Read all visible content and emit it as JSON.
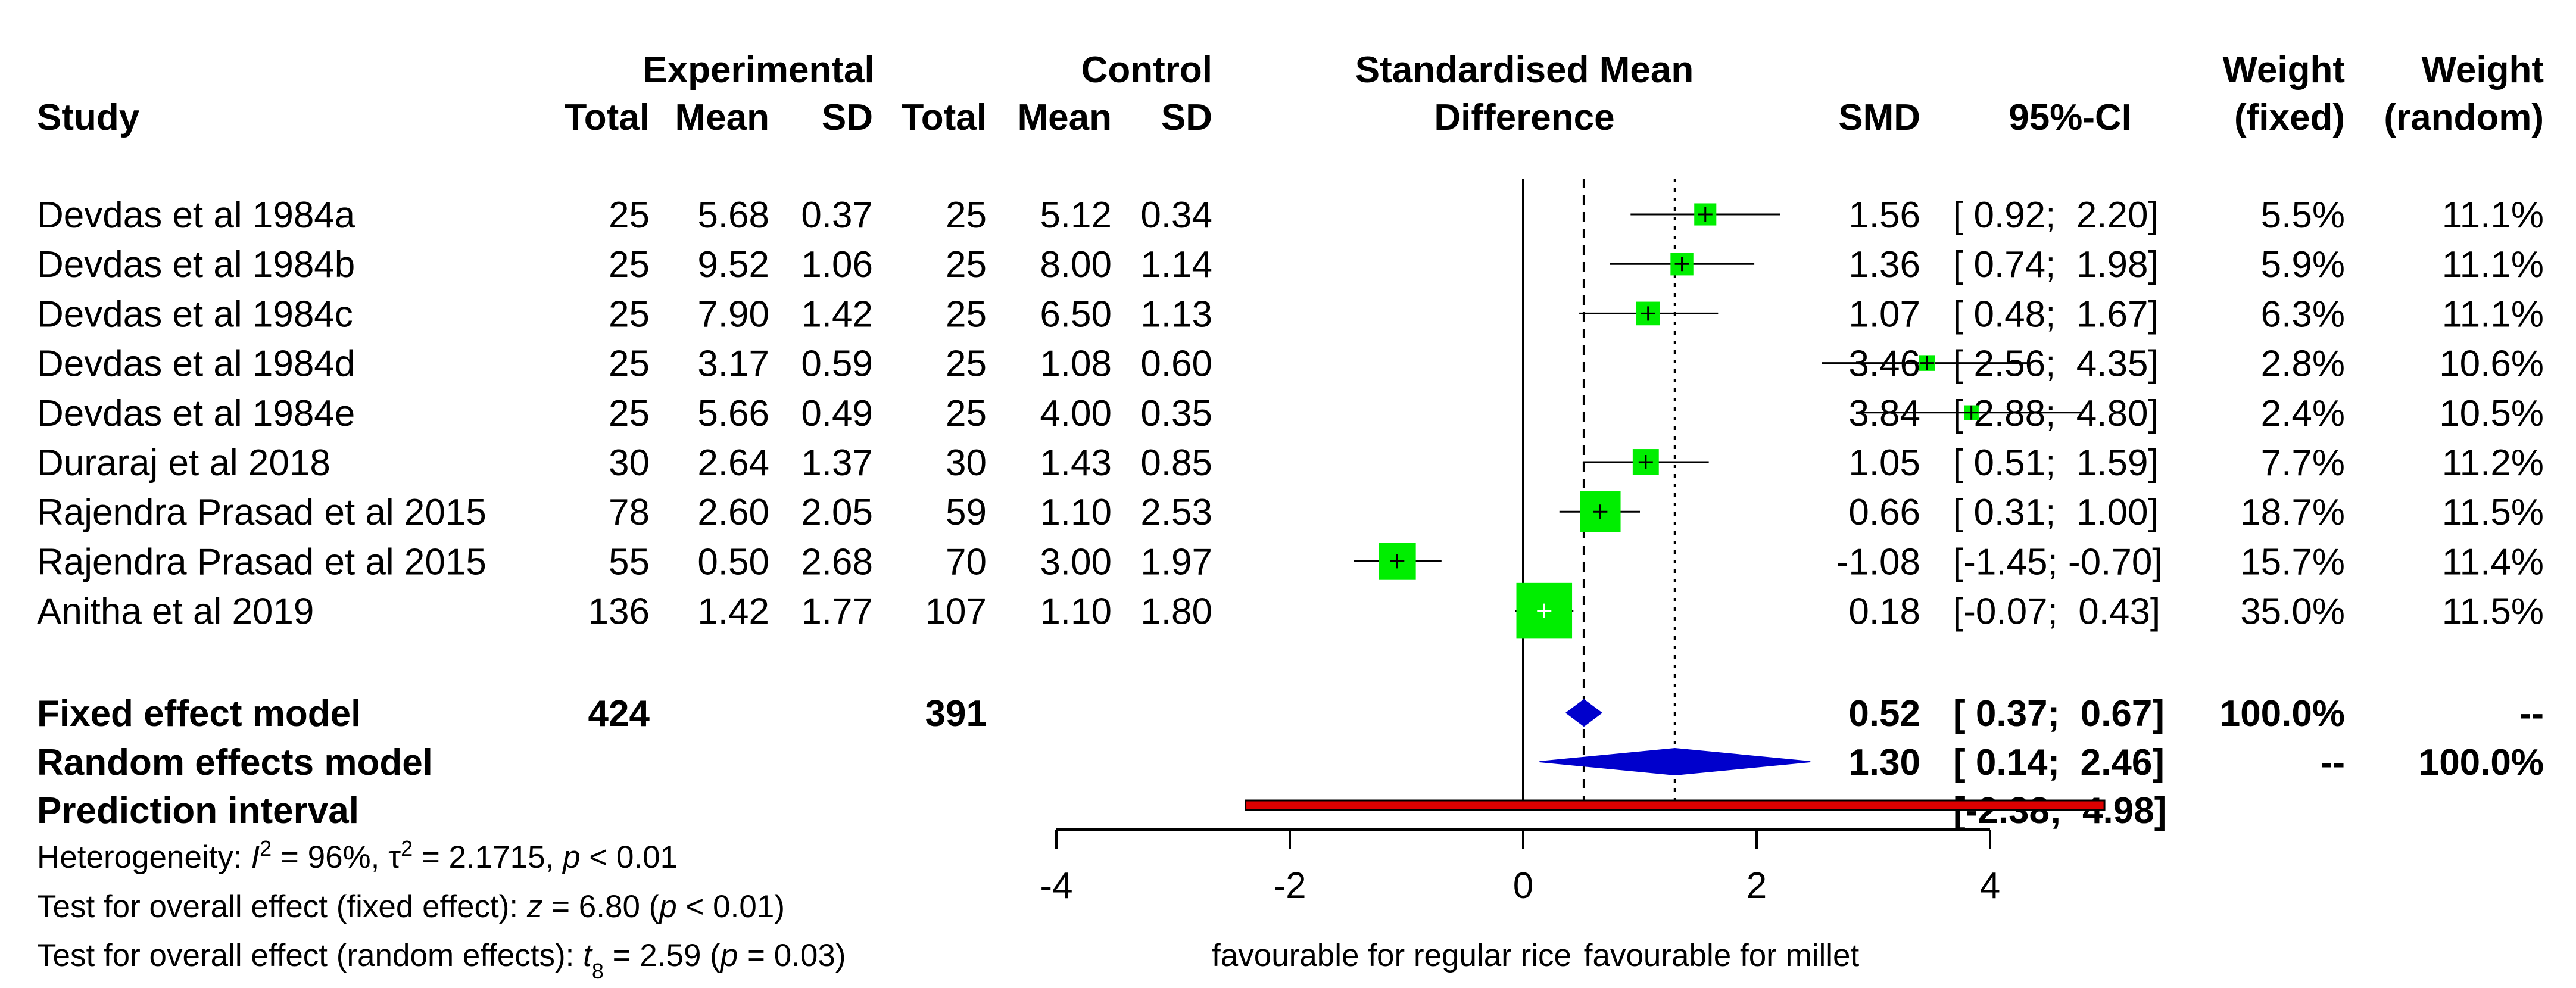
{
  "headers": {
    "study": "Study",
    "experimental": "Experimental",
    "control": "Control",
    "total": "Total",
    "mean": "Mean",
    "sd": "SD",
    "smd_line1": "Standardised Mean",
    "smd_line2": "Difference",
    "smd": "SMD",
    "ci": "95%-CI",
    "weight": "Weight",
    "fixed": "(fixed)",
    "random": "(random)"
  },
  "studies": [
    {
      "study": "Devdas et al 1984a",
      "exp_total": "25",
      "exp_mean": "5.68",
      "exp_sd": "0.37",
      "ctl_total": "25",
      "ctl_mean": "5.12",
      "ctl_sd": "0.34",
      "smd_text": "1.56",
      "ci_text": "[ 0.92;  2.20]",
      "w_fixed": "5.5%",
      "w_random": "11.1%"
    },
    {
      "study": "Devdas et al 1984b",
      "exp_total": "25",
      "exp_mean": "9.52",
      "exp_sd": "1.06",
      "ctl_total": "25",
      "ctl_mean": "8.00",
      "ctl_sd": "1.14",
      "smd_text": "1.36",
      "ci_text": "[ 0.74;  1.98]",
      "w_fixed": "5.9%",
      "w_random": "11.1%"
    },
    {
      "study": "Devdas et al 1984c",
      "exp_total": "25",
      "exp_mean": "7.90",
      "exp_sd": "1.42",
      "ctl_total": "25",
      "ctl_mean": "6.50",
      "ctl_sd": "1.13",
      "smd_text": "1.07",
      "ci_text": "[ 0.48;  1.67]",
      "w_fixed": "6.3%",
      "w_random": "11.1%"
    },
    {
      "study": "Devdas et al 1984d",
      "exp_total": "25",
      "exp_mean": "3.17",
      "exp_sd": "0.59",
      "ctl_total": "25",
      "ctl_mean": "1.08",
      "ctl_sd": "0.60",
      "smd_text": "3.46",
      "ci_text": "[ 2.56;  4.35]",
      "w_fixed": "2.8%",
      "w_random": "10.6%"
    },
    {
      "study": "Devdas et al 1984e",
      "exp_total": "25",
      "exp_mean": "5.66",
      "exp_sd": "0.49",
      "ctl_total": "25",
      "ctl_mean": "4.00",
      "ctl_sd": "0.35",
      "smd_text": "3.84",
      "ci_text": "[ 2.88;  4.80]",
      "w_fixed": "2.4%",
      "w_random": "10.5%"
    },
    {
      "study": "Duraraj et al 2018",
      "exp_total": "30",
      "exp_mean": "2.64",
      "exp_sd": "1.37",
      "ctl_total": "30",
      "ctl_mean": "1.43",
      "ctl_sd": "0.85",
      "smd_text": "1.05",
      "ci_text": "[ 0.51;  1.59]",
      "w_fixed": "7.7%",
      "w_random": "11.2%"
    },
    {
      "study": "Rajendra Prasad et al 2015",
      "exp_total": "78",
      "exp_mean": "2.60",
      "exp_sd": "2.05",
      "ctl_total": "59",
      "ctl_mean": "1.10",
      "ctl_sd": "2.53",
      "smd_text": "0.66",
      "ci_text": "[ 0.31;  1.00]",
      "w_fixed": "18.7%",
      "w_random": "11.5%"
    },
    {
      "study": "Rajendra Prasad et al 2015",
      "exp_total": "55",
      "exp_mean": "0.50",
      "exp_sd": "2.68",
      "ctl_total": "70",
      "ctl_mean": "3.00",
      "ctl_sd": "1.97",
      "smd_text": "-1.08",
      "ci_text": "[-1.45; -0.70]",
      "w_fixed": "15.7%",
      "w_random": "11.4%"
    },
    {
      "study": "Anitha et al 2019",
      "exp_total": "136",
      "exp_mean": "1.42",
      "exp_sd": "1.77",
      "ctl_total": "107",
      "ctl_mean": "1.10",
      "ctl_sd": "1.80",
      "smd_text": "0.18",
      "ci_text": "[-0.07;  0.43]",
      "w_fixed": "35.0%",
      "w_random": "11.5%"
    }
  ],
  "summary": {
    "fixed": {
      "label": "Fixed effect model",
      "exp_total": "424",
      "ctl_total": "391",
      "smd_text": "0.52",
      "ci_text": "[ 0.37;  0.67]",
      "w_fixed": "100.0%",
      "w_random": "--"
    },
    "random": {
      "label": "Random effects model",
      "smd_text": "1.30",
      "ci_text": "[ 0.14;  2.46]",
      "w_fixed": "--",
      "w_random": "100.0%"
    },
    "prediction": {
      "label": "Prediction interval",
      "ci_text": "[-2.38;  4.98]"
    }
  },
  "footnotes": {
    "heterogeneity": {
      "prefix": "Heterogeneity: ",
      "i2_symbol": "I",
      "i2_sup": "2",
      "i2_value": " = 96%, ",
      "tau_symbol": "τ",
      "tau_sup": "2",
      "tau_value": " = 2.1715, ",
      "p_symbol": "p",
      "p_value": " < 0.01"
    },
    "fixed_test": {
      "prefix": "Test for overall effect (fixed effect): ",
      "stat": "z",
      "stat_value": " = 6.80 (",
      "p_symbol": "p",
      "p_value": " < 0.01)"
    },
    "random_test": {
      "prefix": "Test for overall effect (random effects): ",
      "stat": "t",
      "stat_sub": "8",
      "stat_value": " = 2.59 (",
      "p_symbol": "p",
      "p_value": " = 0.03)"
    }
  },
  "axis": {
    "left_label": "favourable for regular rice",
    "right_label": "favourable for millet"
  },
  "colors": {
    "square": "#00ee00",
    "diamond": "#0000cc",
    "prediction": "#dd0000"
  },
  "chart_data": {
    "type": "forest",
    "xlim": [
      -4,
      5
    ],
    "xticks": [
      -4,
      -2,
      0,
      2,
      4
    ],
    "reference_line": 0,
    "fixed_line": 0.52,
    "random_line": 1.3,
    "studies": [
      {
        "smd": 1.56,
        "lower": 0.92,
        "upper": 2.2,
        "weight_fixed": 5.5
      },
      {
        "smd": 1.36,
        "lower": 0.74,
        "upper": 1.98,
        "weight_fixed": 5.9
      },
      {
        "smd": 1.07,
        "lower": 0.48,
        "upper": 1.67,
        "weight_fixed": 6.3
      },
      {
        "smd": 3.46,
        "lower": 2.56,
        "upper": 4.35,
        "weight_fixed": 2.8
      },
      {
        "smd": 3.84,
        "lower": 2.88,
        "upper": 4.8,
        "weight_fixed": 2.4
      },
      {
        "smd": 1.05,
        "lower": 0.51,
        "upper": 1.59,
        "weight_fixed": 7.7
      },
      {
        "smd": 0.66,
        "lower": 0.31,
        "upper": 1.0,
        "weight_fixed": 18.7
      },
      {
        "smd": -1.08,
        "lower": -1.45,
        "upper": -0.7,
        "weight_fixed": 15.7
      },
      {
        "smd": 0.18,
        "lower": -0.07,
        "upper": 0.43,
        "weight_fixed": 35.0
      }
    ],
    "fixed_effect": {
      "smd": 0.52,
      "lower": 0.37,
      "upper": 0.67
    },
    "random_effects": {
      "smd": 1.3,
      "lower": 0.14,
      "upper": 2.46
    },
    "prediction_interval": {
      "lower": -2.38,
      "upper": 4.98
    }
  }
}
